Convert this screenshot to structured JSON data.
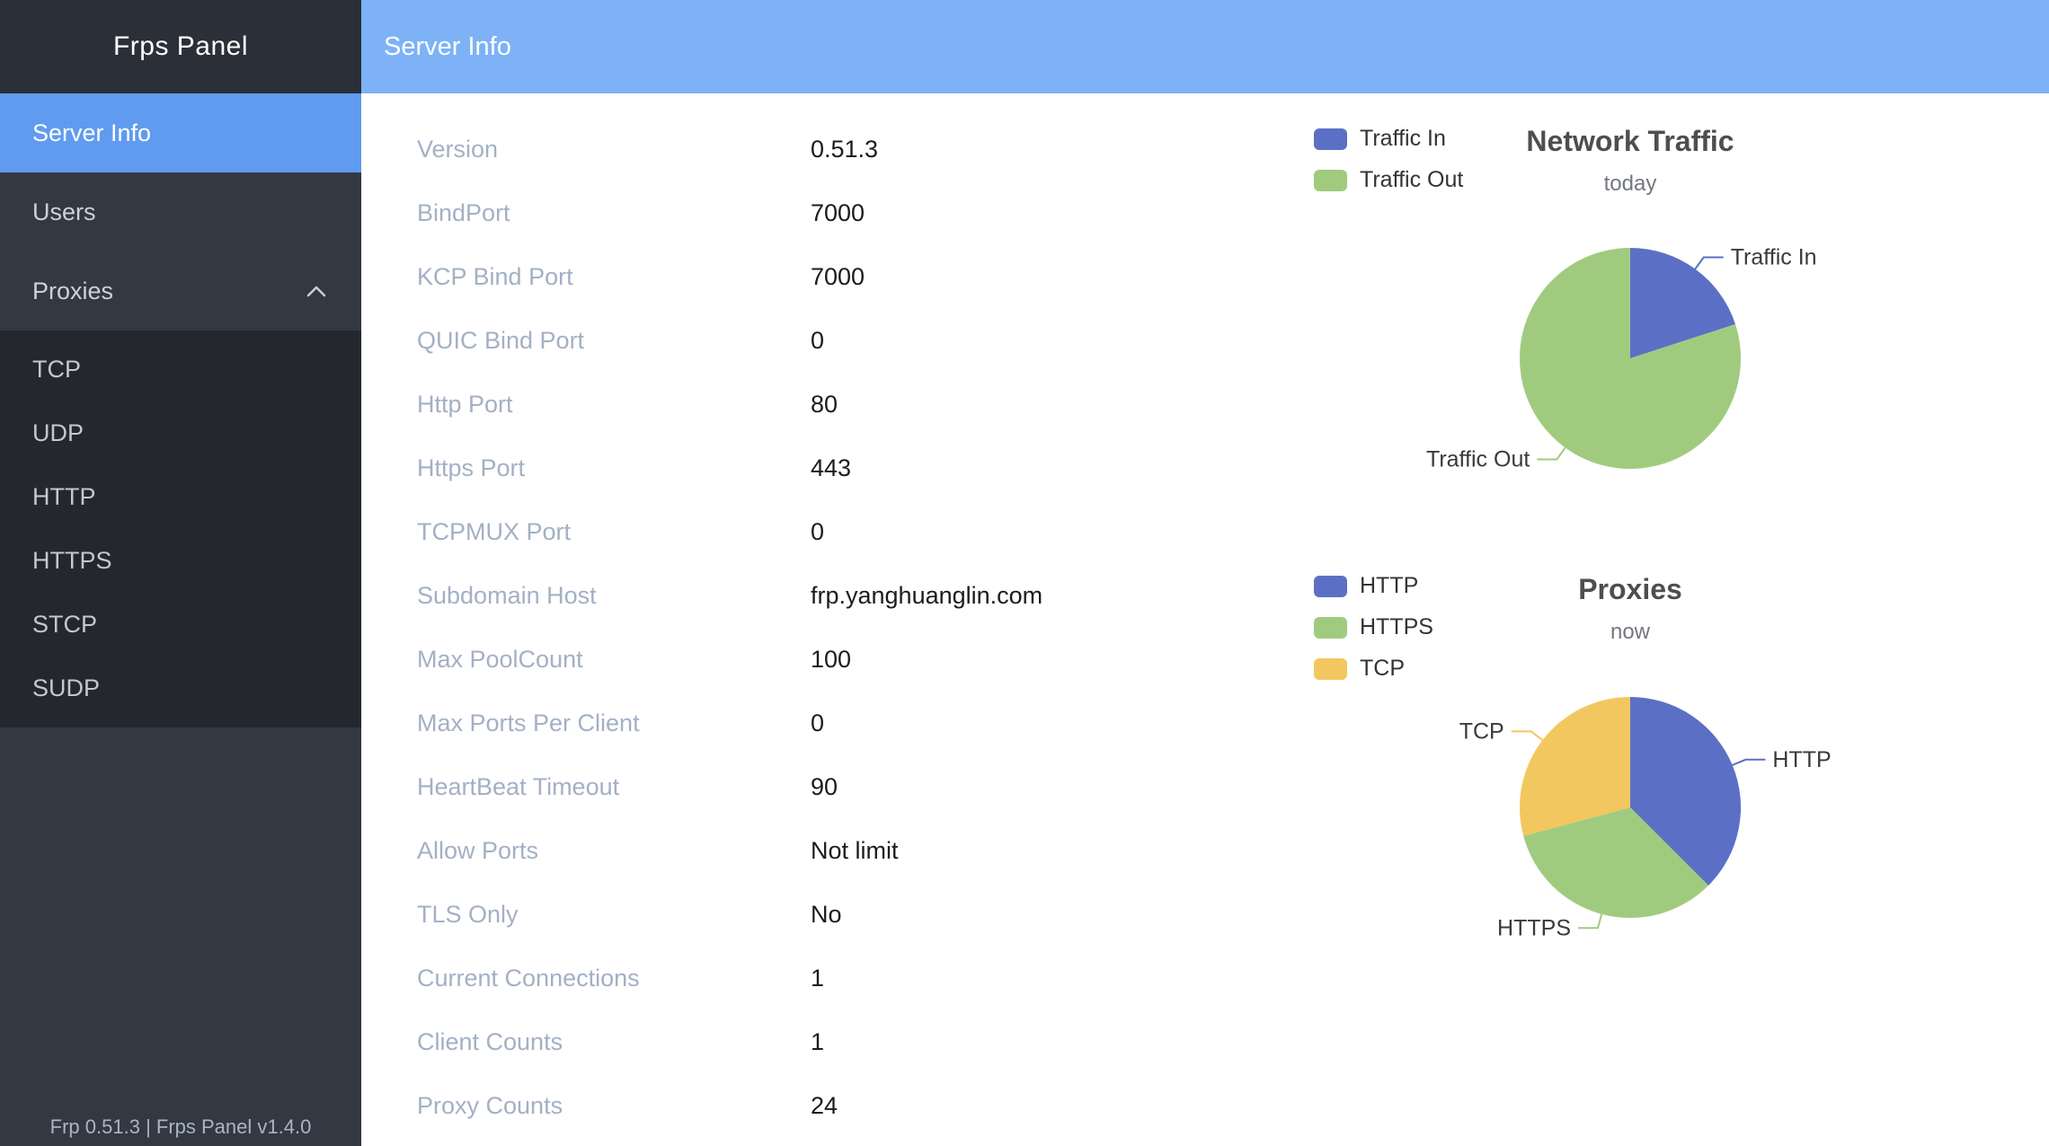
{
  "app": {
    "sidebar_title": "Frps Panel",
    "footer": "Frp 0.51.3 | Frps Panel v1.4.0"
  },
  "header": {
    "title": "Server Info"
  },
  "sidebar": {
    "items": [
      {
        "id": "server-info",
        "label": "Server Info",
        "active": true
      },
      {
        "id": "users",
        "label": "Users",
        "active": false
      },
      {
        "id": "proxies",
        "label": "Proxies",
        "active": false,
        "expanded": true,
        "children": [
          {
            "id": "tcp",
            "label": "TCP"
          },
          {
            "id": "udp",
            "label": "UDP"
          },
          {
            "id": "http",
            "label": "HTTP"
          },
          {
            "id": "https",
            "label": "HTTPS"
          },
          {
            "id": "stcp",
            "label": "STCP"
          },
          {
            "id": "sudp",
            "label": "SUDP"
          }
        ]
      }
    ]
  },
  "server_info": {
    "rows": [
      {
        "label": "Version",
        "value": "0.51.3"
      },
      {
        "label": "BindPort",
        "value": "7000"
      },
      {
        "label": "KCP Bind Port",
        "value": "7000"
      },
      {
        "label": "QUIC Bind Port",
        "value": "0"
      },
      {
        "label": "Http Port",
        "value": "80"
      },
      {
        "label": "Https Port",
        "value": "443"
      },
      {
        "label": "TCPMUX Port",
        "value": "0"
      },
      {
        "label": "Subdomain Host",
        "value": "frp.yanghuanglin.com"
      },
      {
        "label": "Max PoolCount",
        "value": "100"
      },
      {
        "label": "Max Ports Per Client",
        "value": "0"
      },
      {
        "label": "HeartBeat Timeout",
        "value": "90"
      },
      {
        "label": "Allow Ports",
        "value": "Not limit"
      },
      {
        "label": "TLS Only",
        "value": "No"
      },
      {
        "label": "Current Connections",
        "value": "1"
      },
      {
        "label": "Client Counts",
        "value": "1"
      },
      {
        "label": "Proxy Counts",
        "value": "24"
      }
    ]
  },
  "chart_data": [
    {
      "type": "pie",
      "title": "Network Traffic",
      "subtitle": "today",
      "legend": [
        "Traffic In",
        "Traffic Out"
      ],
      "legend_position": "left-top",
      "values_unit": "percent share (estimated from slice angles)",
      "series": [
        {
          "name": "Traffic In",
          "value": 20,
          "color": "#5B70C4"
        },
        {
          "name": "Traffic Out",
          "value": 80,
          "color": "#A0CB7F"
        }
      ]
    },
    {
      "type": "pie",
      "title": "Proxies",
      "subtitle": "now",
      "legend": [
        "HTTP",
        "HTTPS",
        "TCP"
      ],
      "legend_position": "left-top",
      "values_unit": "proxy count (24 total)",
      "series": [
        {
          "name": "HTTP",
          "value": 9,
          "color": "#5B70C4"
        },
        {
          "name": "HTTPS",
          "value": 8,
          "color": "#A0CB7F"
        },
        {
          "name": "TCP",
          "value": 7,
          "color": "#F2C75F"
        }
      ]
    }
  ],
  "colors": {
    "sidebar_bg": "#333842",
    "sidebar_title_bg": "#2B2F37",
    "submenu_bg": "#24272E",
    "active_item_bg": "#609BF0",
    "header_bg": "#7DB2F7",
    "label_text": "#A3B0C5",
    "pie_blue": "#5B70C4",
    "pie_green": "#A0CB7F",
    "pie_yellow": "#F2C75F"
  }
}
